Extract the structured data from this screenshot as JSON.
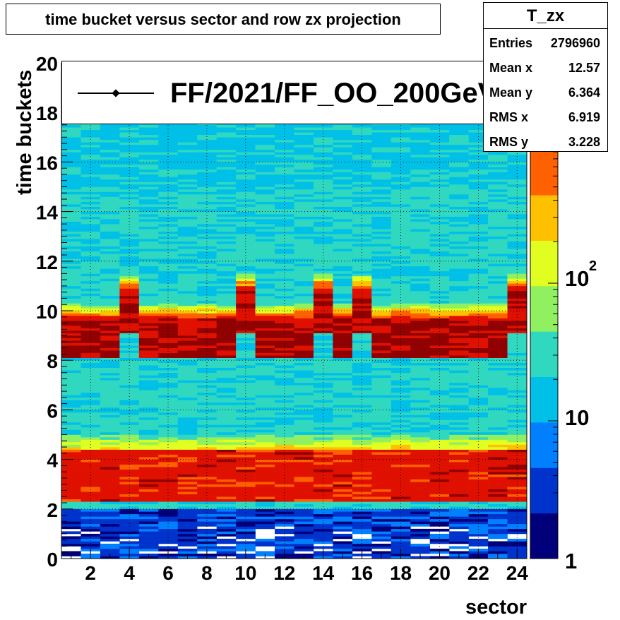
{
  "chart_data": {
    "type": "heatmap",
    "title": "time bucket versus sector and row zx projection",
    "xlabel": "sector",
    "ylabel": "time buckets",
    "xlim": [
      0.5,
      24.5
    ],
    "ylim": [
      0,
      20
    ],
    "x_ticks": [
      "2",
      "4",
      "6",
      "8",
      "10",
      "12",
      "14",
      "16",
      "18",
      "20",
      "22",
      "24"
    ],
    "y_ticks": [
      "0",
      "2",
      "4",
      "6",
      "8",
      "10",
      "12",
      "14",
      "16",
      "18",
      "20"
    ],
    "colorbar": {
      "scale": "log",
      "min": 1,
      "labels": [
        "1",
        "10",
        "10^2"
      ]
    },
    "colormap": [
      "#00007a",
      "#0033cc",
      "#0080ff",
      "#00c0e8",
      "#30d8c0",
      "#90f060",
      "#e0ff20",
      "#ffc000",
      "#ff6000",
      "#e01000",
      "#900000"
    ],
    "grid": true,
    "legend": {
      "placement": "top",
      "entry": "FF/2021/FF_OO_200GeV"
    },
    "series_summary": {
      "x_bins": [
        "1",
        "2",
        "3",
        "4",
        "5",
        "6",
        "7",
        "8",
        "9",
        "10",
        "11",
        "12",
        "13",
        "14",
        "15",
        "16",
        "17",
        "18",
        "19",
        "20",
        "21",
        "22",
        "23",
        "24"
      ],
      "main_peak_sectors_low": [
        1,
        2,
        3,
        5,
        6,
        7,
        8,
        9,
        11,
        12,
        13,
        15,
        17,
        18,
        19,
        20,
        21,
        22,
        23
      ],
      "main_peak_range_low": [
        8.1,
        9.6
      ],
      "main_peak_sectors_high": [
        4,
        10,
        14,
        24
      ],
      "main_peak_range_high": [
        9.1,
        10.8
      ],
      "second_peak_range": [
        2.3,
        4.4
      ],
      "sparse_region_below": 2.0
    }
  },
  "stats": {
    "name": "T_zx",
    "rows": [
      {
        "key": "Entries",
        "value": "2796960"
      },
      {
        "key": "Mean x",
        "value": "12.57"
      },
      {
        "key": "Mean y",
        "value": "6.364"
      },
      {
        "key": "RMS x",
        "value": "6.919"
      },
      {
        "key": "RMS y",
        "value": "3.228"
      }
    ]
  },
  "legend_label": "FF/2021/FF_OO_200GeV",
  "colorbar_exponent": "2"
}
